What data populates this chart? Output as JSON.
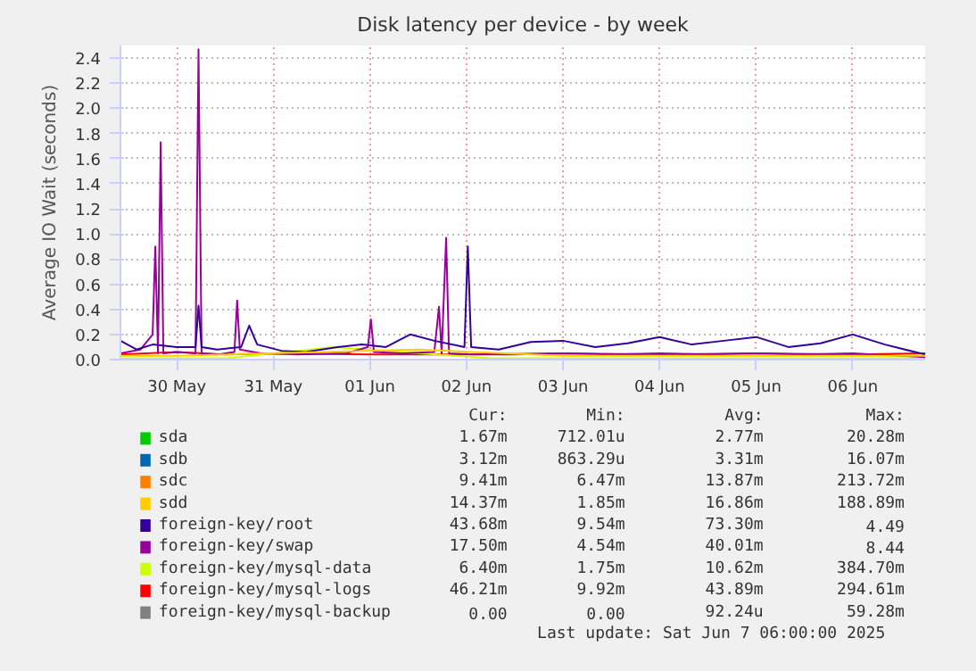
{
  "chart_data": {
    "type": "line",
    "title": "Disk latency per device - by week",
    "ylabel": "Average IO Wait (seconds)",
    "xlim": [
      "2025-05-29T22:00",
      "2025-06-07T06:00"
    ],
    "xticks": [
      {
        "value": "2025-05-30T12:00",
        "label": "30 May"
      },
      {
        "value": "2025-05-31T12:00",
        "label": "31 May"
      },
      {
        "value": "2025-06-01T12:00",
        "label": "01 Jun"
      },
      {
        "value": "2025-06-02T12:00",
        "label": "02 Jun"
      },
      {
        "value": "2025-06-03T12:00",
        "label": "03 Jun"
      },
      {
        "value": "2025-06-04T12:00",
        "label": "04 Jun"
      },
      {
        "value": "2025-06-05T12:00",
        "label": "05 Jun"
      },
      {
        "value": "2025-06-06T12:00",
        "label": "06 Jun"
      }
    ],
    "ylim": [
      0,
      2.5
    ],
    "yticks": [
      {
        "value": 0,
        "label": "0.0"
      },
      0.2,
      0.4,
      0.6,
      0.8,
      {
        "value": 1,
        "label": "1.0"
      },
      1.2,
      1.4,
      1.6,
      1.8,
      {
        "value": 2,
        "label": "2.0"
      },
      2.2,
      2.4
    ],
    "grid": true,
    "legend": "bottom",
    "series": [
      {
        "name": "sda",
        "color": "#00cc00"
      },
      {
        "name": "sdb",
        "color": "#0066b3"
      },
      {
        "name": "sdc",
        "color": "#ff8000"
      },
      {
        "name": "sdd",
        "color": "#ffcc00",
        "x": [
          "2025-05-29T22:00",
          "2025-05-30T12:00",
          "2025-06-02T00:00",
          "2025-06-03T12:00",
          "2025-06-05T12:00",
          "2025-06-07T06:00"
        ],
        "values": [
          0.03,
          0.03,
          0.08,
          0.03,
          0.03,
          0.03
        ]
      },
      {
        "name": "foreign-key/root",
        "color": "#330099",
        "x": [
          "2025-05-29T22:00",
          "2025-05-30T02:00",
          "2025-05-30T06:00",
          "2025-05-30T12:00",
          "2025-05-30T16:40",
          "2025-05-30T17:24",
          "2025-05-30T18:10",
          "2025-05-30T22:00",
          "2025-05-31T04:00",
          "2025-05-31T06:00",
          "2025-05-31T08:00",
          "2025-05-31T14:00",
          "2025-05-31T20:00",
          "2025-06-01T04:00",
          "2025-06-01T10:00",
          "2025-06-01T16:00",
          "2025-06-01T22:00",
          "2025-06-02T04:00",
          "2025-06-02T11:30",
          "2025-06-02T12:20",
          "2025-06-02T13:10",
          "2025-06-02T20:00",
          "2025-06-03T04:00",
          "2025-06-03T12:00",
          "2025-06-03T20:00",
          "2025-06-04T04:00",
          "2025-06-04T12:00",
          "2025-06-04T20:00",
          "2025-06-05T04:00",
          "2025-06-05T12:00",
          "2025-06-05T20:00",
          "2025-06-06T04:00",
          "2025-06-06T12:00",
          "2025-06-06T20:00",
          "2025-06-07T06:00"
        ],
        "values": [
          0.15,
          0.08,
          0.12,
          0.1,
          0.1,
          0.43,
          0.1,
          0.08,
          0.1,
          0.27,
          0.12,
          0.07,
          0.06,
          0.1,
          0.12,
          0.1,
          0.2,
          0.15,
          0.1,
          0.9,
          0.1,
          0.08,
          0.14,
          0.15,
          0.1,
          0.13,
          0.18,
          0.12,
          0.15,
          0.18,
          0.1,
          0.13,
          0.2,
          0.12,
          0.04
        ]
      },
      {
        "name": "foreign-key/swap",
        "color": "#990099",
        "x": [
          "2025-05-29T22:00",
          "2025-05-30T03:00",
          "2025-05-30T06:00",
          "2025-05-30T06:40",
          "2025-05-30T07:20",
          "2025-05-30T08:00",
          "2025-05-30T08:40",
          "2025-05-30T12:00",
          "2025-05-30T16:40",
          "2025-05-30T17:24",
          "2025-05-30T18:10",
          "2025-05-30T22:00",
          "2025-05-31T02:20",
          "2025-05-31T03:00",
          "2025-05-31T03:40",
          "2025-05-31T09:00",
          "2025-05-31T18:00",
          "2025-06-01T06:00",
          "2025-06-01T11:30",
          "2025-06-01T12:15",
          "2025-06-01T13:00",
          "2025-06-01T20:00",
          "2025-06-02T04:00",
          "2025-06-02T05:10",
          "2025-06-02T05:50",
          "2025-06-02T06:57",
          "2025-06-02T07:40",
          "2025-06-02T14:00",
          "2025-06-03T00:00",
          "2025-06-03T12:00",
          "2025-06-04T00:00",
          "2025-06-04T12:00",
          "2025-06-05T00:00",
          "2025-06-05T12:00",
          "2025-06-06T00:00",
          "2025-06-06T12:00",
          "2025-06-07T06:00"
        ],
        "values": [
          0.05,
          0.08,
          0.2,
          0.9,
          0.05,
          1.73,
          0.05,
          0.06,
          0.05,
          2.47,
          0.05,
          0.04,
          0.06,
          0.47,
          0.08,
          0.05,
          0.04,
          0.05,
          0.1,
          0.32,
          0.06,
          0.05,
          0.06,
          0.42,
          0.05,
          0.97,
          0.05,
          0.04,
          0.04,
          0.05,
          0.04,
          0.05,
          0.04,
          0.05,
          0.04,
          0.05,
          0.02
        ]
      },
      {
        "name": "foreign-key/mysql-data",
        "color": "#ccff00",
        "x": [
          "2025-05-29T22:00",
          "2025-05-31T00:00",
          "2025-06-01T03:00",
          "2025-06-02T18:00",
          "2025-06-04T00:00",
          "2025-06-07T06:00"
        ],
        "values": [
          0.01,
          0.01,
          0.1,
          0.01,
          0.01,
          0.01
        ]
      },
      {
        "name": "foreign-key/mysql-logs",
        "color": "#ff0000",
        "x": [
          "2025-05-29T22:00",
          "2025-05-30T12:00",
          "2025-05-31T00:00",
          "2025-05-31T12:00",
          "2025-06-01T12:00",
          "2025-06-02T12:00",
          "2025-06-03T12:00",
          "2025-06-04T12:00",
          "2025-06-05T12:00",
          "2025-06-06T12:00",
          "2025-06-07T06:00"
        ],
        "values": [
          0.04,
          0.06,
          0.04,
          0.05,
          0.04,
          0.04,
          0.05,
          0.04,
          0.05,
          0.04,
          0.05
        ]
      },
      {
        "name": "foreign-key/mysql-backup",
        "color": "#808080"
      }
    ],
    "annotations": [
      "Cur:",
      "Min:",
      "Avg:",
      "Max:",
      "1.67m",
      "712.01u",
      "2.77m",
      "20.28m",
      "3.12m",
      "863.29u",
      "3.31m",
      "16.07m",
      "9.41m",
      "6.47m",
      "13.87m",
      "213.72m",
      "14.37m",
      "1.85m",
      "16.86m",
      "188.89m",
      "43.68m",
      "9.54m",
      "73.30m",
      "4.49",
      "17.50m",
      "4.54m",
      "40.01m",
      "8.44",
      "6.40m",
      "1.75m",
      "10.62m",
      "384.70m",
      "46.21m",
      "9.92m",
      "43.89m",
      "294.61m",
      "0.00",
      "0.00",
      "92.24u",
      "59.28m",
      "Last update:  Sat Jun  7 06:00:00 2025"
    ]
  }
}
